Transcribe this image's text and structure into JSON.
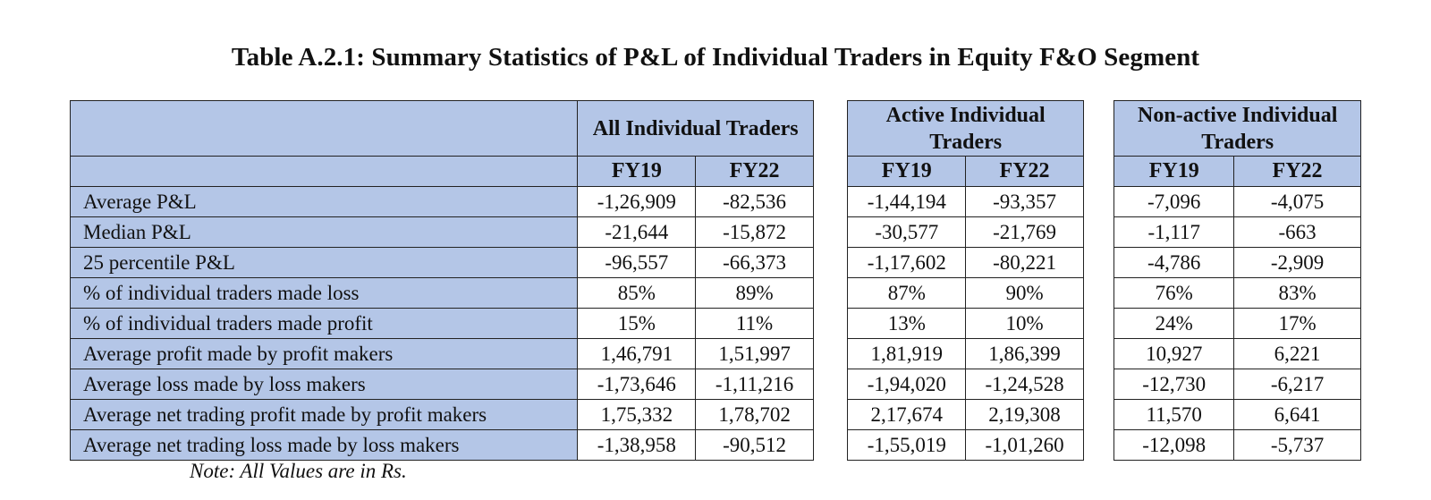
{
  "title": "Table A.2.1: Summary Statistics of P&L of Individual Traders in Equity F&O Segment",
  "groups": [
    {
      "name": "All Individual Traders"
    },
    {
      "name": "Active Individual Traders"
    },
    {
      "name": "Non-active Individual Traders"
    }
  ],
  "years": [
    "FY19",
    "FY22"
  ],
  "rows": [
    {
      "label": "Average P&L",
      "values": [
        "-1,26,909",
        "-82,536",
        "-1,44,194",
        "-93,357",
        "-7,096",
        "-4,075"
      ]
    },
    {
      "label": "Median P&L",
      "values": [
        "-21,644",
        "-15,872",
        "-30,577",
        "-21,769",
        "-1,117",
        "-663"
      ]
    },
    {
      "label": "25 percentile P&L",
      "values": [
        "-96,557",
        "-66,373",
        "-1,17,602",
        "-80,221",
        "-4,786",
        "-2,909"
      ]
    },
    {
      "label": "% of individual traders made loss",
      "values": [
        "85%",
        "89%",
        "87%",
        "90%",
        "76%",
        "83%"
      ]
    },
    {
      "label": "% of individual traders made profit",
      "values": [
        "15%",
        "11%",
        "13%",
        "10%",
        "24%",
        "17%"
      ]
    },
    {
      "label": "Average profit made by profit makers",
      "values": [
        "1,46,791",
        "1,51,997",
        "1,81,919",
        "1,86,399",
        "10,927",
        "6,221"
      ]
    },
    {
      "label": "Average loss made by loss makers",
      "values": [
        "-1,73,646",
        "-1,11,216",
        "-1,94,020",
        "-1,24,528",
        "-12,730",
        "-6,217"
      ]
    },
    {
      "label": "Average net trading profit made by profit makers",
      "values": [
        "1,75,332",
        "1,78,702",
        "2,17,674",
        "2,19,308",
        "11,570",
        "6,641"
      ]
    },
    {
      "label": "Average net trading loss made by loss makers",
      "values": [
        "-1,38,958",
        "-90,512",
        "-1,55,019",
        "-1,01,260",
        "-12,098",
        "-5,737"
      ]
    }
  ],
  "note": "Note: All Values are in Rs.",
  "colors": {
    "header_fill": "#b4c6e7",
    "border": "#222222"
  }
}
